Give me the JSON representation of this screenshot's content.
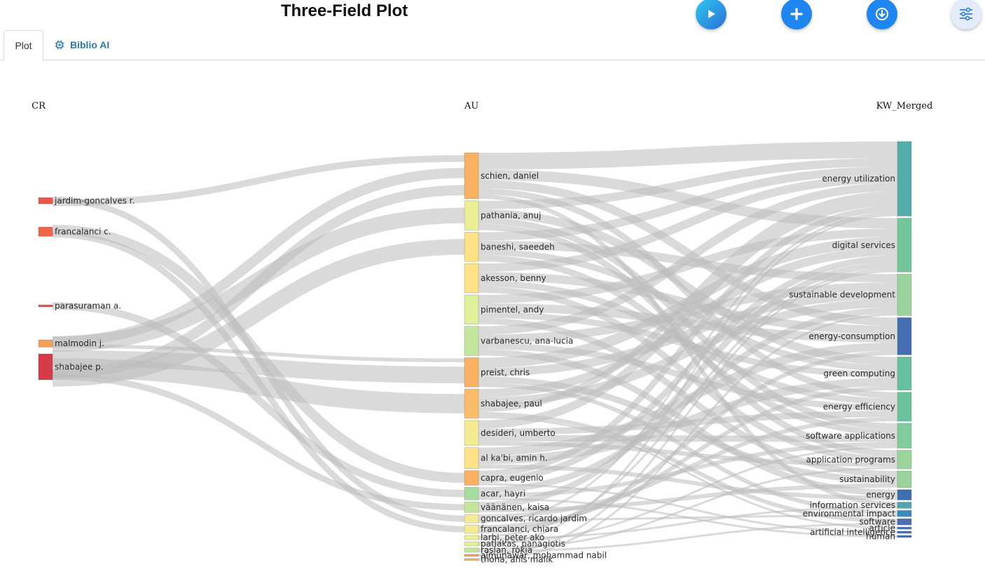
{
  "header": {
    "title": "Three-Field Plot"
  },
  "toolbar": {
    "run_icon": "play-icon",
    "add_icon": "plus-icon",
    "download_icon": "download-icon",
    "options_icon": "sliders-icon"
  },
  "tabs": [
    {
      "label": "Plot",
      "active": true
    },
    {
      "label": "Biblio AI",
      "icon": "chip-icon"
    }
  ],
  "diagram": {
    "columns": [
      "CR",
      "AU",
      "KW_Merged"
    ],
    "nodes": {
      "CR": [
        {
          "label": "jardim-goncalves r.",
          "color": "#e95549"
        },
        {
          "label": "francalanci c.",
          "color": "#ee6648"
        },
        {
          "label": "parasuraman a.",
          "color": "#e95549"
        },
        {
          "label": "malmodin j.",
          "color": "#f4a05a"
        },
        {
          "label": "shabajee p.",
          "color": "#d73a4b"
        }
      ],
      "AU": [
        {
          "label": "schien, daniel",
          "color": "#fab161"
        },
        {
          "label": "pathania, anuj",
          "color": "#ecef95"
        },
        {
          "label": "baneshi, saeedeh",
          "color": "#fde287"
        },
        {
          "label": "akesson, benny",
          "color": "#fde287"
        },
        {
          "label": "pimentel, andy",
          "color": "#dff09a"
        },
        {
          "label": "varbanescu, ana-lucia",
          "color": "#c4e69c"
        },
        {
          "label": "preist, chris",
          "color": "#fab161"
        },
        {
          "label": "shabajee, paul",
          "color": "#fbbd6a"
        },
        {
          "label": "desideri, umberto",
          "color": "#f4ec95"
        },
        {
          "label": "al ka'bi, amin h.",
          "color": "#fde287"
        },
        {
          "label": "capra, eugenio",
          "color": "#fab161"
        },
        {
          "label": "acar, hayri",
          "color": "#a8dca0"
        },
        {
          "label": "väänänen, kaisa",
          "color": "#c4e69c"
        },
        {
          "label": "goncalves, ricardo jardim",
          "color": "#f4ec95"
        },
        {
          "label": "francalanci, chiara",
          "color": "#f4ec95"
        },
        {
          "label": "larbi, peter ako",
          "color": "#ecef95"
        },
        {
          "label": "patlakas, panagiotis",
          "color": "#dff09a"
        },
        {
          "label": "raslan, rokia",
          "color": "#c4e69c"
        },
        {
          "label": "almunawar, mohammad nabil",
          "color": "#f4a05a"
        },
        {
          "label": "thoha, anis malik",
          "color": "#fab161"
        }
      ],
      "KW_Merged": [
        {
          "label": "energy utilization",
          "color": "#53aeab"
        },
        {
          "label": "digital services",
          "color": "#72c79a"
        },
        {
          "label": "sustainable development",
          "color": "#99d59b"
        },
        {
          "label": "energy-consumption",
          "color": "#4470b3"
        },
        {
          "label": "green computing",
          "color": "#67c09d"
        },
        {
          "label": "energy efficiency",
          "color": "#6bc39c"
        },
        {
          "label": "software applications",
          "color": "#80cc9c"
        },
        {
          "label": "application programs",
          "color": "#9bd49c"
        },
        {
          "label": "sustainability",
          "color": "#99d59b"
        },
        {
          "label": "energy",
          "color": "#3d6fae"
        },
        {
          "label": "information services",
          "color": "#50a5b3"
        },
        {
          "label": "environmental impact",
          "color": "#3b8abd"
        },
        {
          "label": "software",
          "color": "#4a6fb0"
        },
        {
          "label": "article",
          "color": "#4a6fb0"
        },
        {
          "label": "artificial intelligence",
          "color": "#4a6fb0"
        },
        {
          "label": "human",
          "color": "#4a6fb0"
        }
      ]
    },
    "link_color": "#bbbbbb",
    "links": [
      [
        "CR",
        0,
        "AU",
        13,
        4
      ],
      [
        "CR",
        0,
        "AU",
        0,
        2
      ],
      [
        "CR",
        1,
        "AU",
        10,
        5
      ],
      [
        "CR",
        1,
        "AU",
        14,
        4
      ],
      [
        "CR",
        2,
        "AU",
        11,
        2
      ],
      [
        "CR",
        3,
        "AU",
        0,
        3
      ],
      [
        "CR",
        3,
        "AU",
        1,
        2
      ],
      [
        "CR",
        3,
        "AU",
        6,
        2
      ],
      [
        "CR",
        4,
        "AU",
        6,
        9
      ],
      [
        "CR",
        4,
        "AU",
        7,
        9
      ],
      [
        "CR",
        4,
        "AU",
        0,
        3
      ],
      [
        "CR",
        4,
        "AU",
        12,
        2
      ],
      [
        "CR",
        4,
        "AU",
        2,
        2
      ],
      [
        "AU",
        0,
        "KW_Merged",
        0,
        8
      ],
      [
        "AU",
        0,
        "KW_Merged",
        1,
        5
      ],
      [
        "AU",
        0,
        "KW_Merged",
        3,
        4
      ],
      [
        "AU",
        0,
        "KW_Merged",
        5,
        3
      ],
      [
        "AU",
        0,
        "KW_Merged",
        10,
        2
      ],
      [
        "AU",
        1,
        "KW_Merged",
        0,
        4
      ],
      [
        "AU",
        1,
        "KW_Merged",
        4,
        4
      ],
      [
        "AU",
        1,
        "KW_Merged",
        6,
        3
      ],
      [
        "AU",
        1,
        "KW_Merged",
        7,
        3
      ],
      [
        "AU",
        2,
        "KW_Merged",
        0,
        4
      ],
      [
        "AU",
        2,
        "KW_Merged",
        2,
        4
      ],
      [
        "AU",
        2,
        "KW_Merged",
        4,
        3
      ],
      [
        "AU",
        2,
        "KW_Merged",
        6,
        3
      ],
      [
        "AU",
        3,
        "KW_Merged",
        0,
        4
      ],
      [
        "AU",
        3,
        "KW_Merged",
        3,
        4
      ],
      [
        "AU",
        3,
        "KW_Merged",
        5,
        3
      ],
      [
        "AU",
        3,
        "KW_Merged",
        7,
        3
      ],
      [
        "AU",
        4,
        "KW_Merged",
        1,
        4
      ],
      [
        "AU",
        4,
        "KW_Merged",
        3,
        4
      ],
      [
        "AU",
        4,
        "KW_Merged",
        4,
        3
      ],
      [
        "AU",
        4,
        "KW_Merged",
        8,
        3
      ],
      [
        "AU",
        5,
        "KW_Merged",
        0,
        4
      ],
      [
        "AU",
        5,
        "KW_Merged",
        2,
        4
      ],
      [
        "AU",
        5,
        "KW_Merged",
        5,
        3
      ],
      [
        "AU",
        5,
        "KW_Merged",
        9,
        3
      ],
      [
        "AU",
        6,
        "KW_Merged",
        1,
        5
      ],
      [
        "AU",
        6,
        "KW_Merged",
        2,
        4
      ],
      [
        "AU",
        6,
        "KW_Merged",
        8,
        3
      ],
      [
        "AU",
        6,
        "KW_Merged",
        11,
        2
      ],
      [
        "AU",
        7,
        "KW_Merged",
        1,
        4
      ],
      [
        "AU",
        7,
        "KW_Merged",
        2,
        4
      ],
      [
        "AU",
        7,
        "KW_Merged",
        0,
        3
      ],
      [
        "AU",
        7,
        "KW_Merged",
        12,
        2
      ],
      [
        "AU",
        7,
        "KW_Merged",
        13,
        1
      ],
      [
        "AU",
        8,
        "KW_Merged",
        0,
        4
      ],
      [
        "AU",
        8,
        "KW_Merged",
        5,
        3
      ],
      [
        "AU",
        8,
        "KW_Merged",
        6,
        3
      ],
      [
        "AU",
        8,
        "KW_Merged",
        7,
        2
      ],
      [
        "AU",
        9,
        "KW_Merged",
        3,
        4
      ],
      [
        "AU",
        9,
        "KW_Merged",
        4,
        4
      ],
      [
        "AU",
        9,
        "KW_Merged",
        9,
        2
      ],
      [
        "AU",
        10,
        "KW_Merged",
        0,
        3
      ],
      [
        "AU",
        10,
        "KW_Merged",
        1,
        3
      ],
      [
        "AU",
        10,
        "KW_Merged",
        14,
        1
      ],
      [
        "AU",
        11,
        "KW_Merged",
        2,
        3
      ],
      [
        "AU",
        11,
        "KW_Merged",
        6,
        2
      ],
      [
        "AU",
        11,
        "KW_Merged",
        15,
        1
      ],
      [
        "AU",
        12,
        "KW_Merged",
        1,
        3
      ],
      [
        "AU",
        12,
        "KW_Merged",
        8,
        2
      ],
      [
        "AU",
        13,
        "KW_Merged",
        5,
        2
      ],
      [
        "AU",
        13,
        "KW_Merged",
        11,
        1
      ],
      [
        "AU",
        13,
        "KW_Merged",
        0,
        1
      ],
      [
        "AU",
        14,
        "KW_Merged",
        4,
        2
      ],
      [
        "AU",
        14,
        "KW_Merged",
        3,
        2
      ],
      [
        "AU",
        15,
        "KW_Merged",
        1,
        1
      ],
      [
        "AU",
        15,
        "KW_Merged",
        10,
        1
      ],
      [
        "AU",
        16,
        "KW_Merged",
        6,
        1
      ],
      [
        "AU",
        16,
        "KW_Merged",
        0,
        1
      ],
      [
        "AU",
        17,
        "KW_Merged",
        7,
        1
      ],
      [
        "AU",
        17,
        "KW_Merged",
        12,
        1
      ],
      [
        "AU",
        18,
        "KW_Merged",
        1,
        1
      ],
      [
        "AU",
        19,
        "KW_Merged",
        2,
        1
      ]
    ]
  }
}
